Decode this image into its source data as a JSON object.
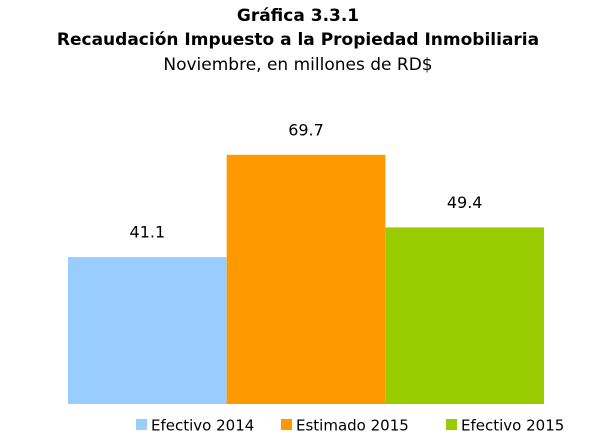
{
  "chart_data": {
    "type": "bar",
    "title": "Gráfica 3.3.1",
    "subtitle": "Recaudación Impuesto a la Propiedad Inmobiliaria",
    "caption": "Noviembre, en millones de RD$",
    "categories": [
      null
    ],
    "series": [
      {
        "name": "Efectivo 2014",
        "color": "#99ccff",
        "values": [
          41.1
        ]
      },
      {
        "name": "Estimado 2015",
        "color": "#ff9900",
        "values": [
          69.7
        ]
      },
      {
        "name": "Efectivo 2015",
        "color": "#99cc00",
        "values": [
          49.4
        ]
      }
    ],
    "ylim": [
      0,
      80
    ],
    "legend": "bottom"
  }
}
